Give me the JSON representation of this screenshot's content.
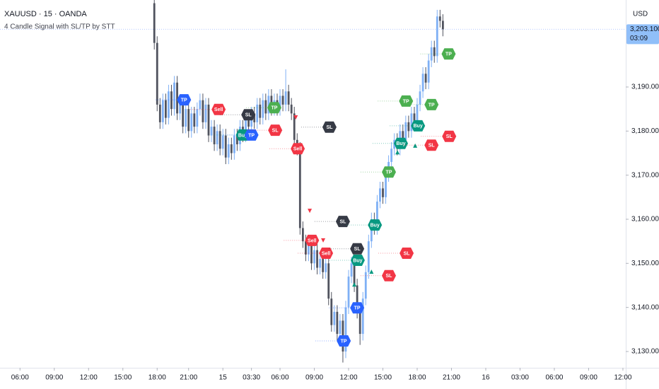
{
  "chart_data": {
    "type": "candlestick",
    "title": "XAUUSD · 15 · OANDA",
    "subtitle": "4 Candle Signal with SL/TP by STT",
    "y_axis_label": "USD",
    "x": [
      47,
      48,
      49,
      50,
      51,
      52,
      53,
      54,
      55,
      56,
      57,
      58,
      59,
      60,
      61,
      62,
      63,
      64,
      65,
      66,
      67,
      68,
      69,
      70,
      71,
      72,
      73,
      74,
      75,
      76,
      77,
      78,
      79,
      80,
      81,
      82,
      83,
      84,
      85,
      86,
      87,
      88,
      89,
      90,
      91,
      92,
      93,
      94,
      95,
      96,
      97,
      98,
      99,
      100,
      101,
      102,
      103,
      104,
      105,
      106,
      107,
      108,
      109,
      110,
      111,
      112,
      113,
      114,
      115,
      116,
      117,
      118,
      119,
      120,
      121,
      122,
      123,
      124,
      125,
      126,
      127,
      128,
      129,
      130,
      131,
      132,
      133,
      134,
      135,
      136,
      137,
      138,
      139,
      140,
      141,
      142,
      143,
      144,
      145,
      146,
      147,
      148
    ],
    "open": [
      3209,
      3200,
      3186,
      3182,
      3187,
      3183,
      3189,
      3185,
      3191,
      3184,
      3186,
      3181,
      3185,
      3180,
      3184,
      3181,
      3185,
      3187,
      3182,
      3186,
      3179,
      3181,
      3177,
      3180,
      3176,
      3179,
      3174,
      3177,
      3175,
      3179,
      3177,
      3181,
      3179,
      3183,
      3181,
      3184,
      3182,
      3186,
      3183,
      3187,
      3184,
      3188,
      3185,
      3187,
      3185,
      3188,
      3186,
      3189,
      3186,
      3184,
      3178,
      3176,
      3158,
      3155,
      3152,
      3154,
      3150,
      3153,
      3149,
      3151,
      3148,
      3150,
      3142,
      3136,
      3139,
      3134,
      3137,
      3130,
      3140,
      3147,
      3150,
      3145,
      3139,
      3134,
      3142,
      3148,
      3155,
      3160,
      3158,
      3164,
      3167,
      3165,
      3170,
      3173,
      3176,
      3178,
      3176,
      3180,
      3178,
      3182,
      3180,
      3184,
      3182,
      3186,
      3189,
      3193,
      3191,
      3196,
      3199,
      3197,
      3206,
      3205
    ],
    "high": [
      3212,
      3201.5,
      3187.5,
      3188.5,
      3188.5,
      3190.5,
      3190.5,
      3192.5,
      3192.5,
      3187.5,
      3187.5,
      3186.5,
      3186.5,
      3185.5,
      3185.5,
      3186.5,
      3188.5,
      3188.5,
      3187.5,
      3187.5,
      3182.5,
      3182.5,
      3181.5,
      3181.5,
      3180.5,
      3180.5,
      3178.5,
      3178.5,
      3180.5,
      3180.5,
      3182.5,
      3182.5,
      3184.5,
      3184.5,
      3185.5,
      3185.5,
      3187.5,
      3187.5,
      3188.5,
      3188.5,
      3189.5,
      3189.5,
      3188.5,
      3188.5,
      3189.5,
      3189.5,
      3194,
      3190.5,
      3187.5,
      3185.5,
      3179.5,
      3177.5,
      3159.5,
      3156.5,
      3155.5,
      3155.5,
      3154.5,
      3154.5,
      3152.5,
      3152.5,
      3151.5,
      3151.5,
      3143.5,
      3140.5,
      3140.5,
      3138.5,
      3138.5,
      3141.5,
      3148.5,
      3151.5,
      3151.5,
      3146.5,
      3140.5,
      3143.5,
      3149.5,
      3156.5,
      3161.5,
      3161.5,
      3165.5,
      3168.5,
      3168.5,
      3171.5,
      3174.5,
      3177.5,
      3179.5,
      3179.5,
      3181.5,
      3181.5,
      3183.5,
      3183.5,
      3185.5,
      3185.5,
      3187.5,
      3190.5,
      3194.5,
      3194.5,
      3197.5,
      3200.5,
      3200.5,
      3207.5,
      3207.5,
      3206.5
    ],
    "low": [
      3198.5,
      3184.5,
      3180.5,
      3180.5,
      3181.5,
      3181.5,
      3183.5,
      3183.5,
      3182.5,
      3182.5,
      3179.5,
      3179.5,
      3178.5,
      3178.5,
      3179.5,
      3179.5,
      3183.5,
      3180.5,
      3180.5,
      3177.5,
      3177.5,
      3175.5,
      3175.5,
      3174.5,
      3174.5,
      3172.5,
      3172.5,
      3173.5,
      3173.5,
      3175.5,
      3175.5,
      3177.5,
      3177.5,
      3179.5,
      3179.5,
      3180.5,
      3180.5,
      3181.5,
      3181.5,
      3182.5,
      3182.5,
      3183.5,
      3183.5,
      3183.5,
      3183.5,
      3184.5,
      3184.5,
      3184.5,
      3182.5,
      3176.5,
      3174.5,
      3156.5,
      3153.5,
      3150.5,
      3150.5,
      3148.5,
      3148.5,
      3147.5,
      3147.5,
      3146.5,
      3146.5,
      3140.5,
      3134.5,
      3134.5,
      3132.5,
      3132.5,
      3127.5,
      3128.5,
      3138.5,
      3145.5,
      3143.5,
      3137.5,
      3131.5,
      3132.5,
      3140.5,
      3146.5,
      3153.5,
      3156.5,
      3156.5,
      3162.5,
      3163.5,
      3163.5,
      3168.5,
      3171.5,
      3174.5,
      3174.5,
      3174.5,
      3176.5,
      3176.5,
      3178.5,
      3178.5,
      3180.5,
      3180.5,
      3184.5,
      3187.5,
      3189.5,
      3189.5,
      3194.5,
      3195.5,
      3195.5,
      3203.5,
      3201.5
    ],
    "close": [
      3200,
      3186,
      3182,
      3187,
      3183,
      3189,
      3185,
      3191,
      3184,
      3186,
      3181,
      3185,
      3180,
      3184,
      3181,
      3185,
      3187,
      3182,
      3186,
      3179,
      3181,
      3177,
      3180,
      3176,
      3179,
      3174,
      3177,
      3175,
      3179,
      3177,
      3181,
      3179,
      3183,
      3181,
      3184,
      3182,
      3186,
      3183,
      3187,
      3184,
      3188,
      3185,
      3187,
      3185,
      3188,
      3186,
      3189,
      3186,
      3184,
      3178,
      3176,
      3158,
      3155,
      3152,
      3154,
      3150,
      3153,
      3149,
      3151,
      3148,
      3150,
      3142,
      3136,
      3139,
      3134,
      3137,
      3130,
      3140,
      3147,
      3150,
      3145,
      3139,
      3134,
      3142,
      3148,
      3155,
      3160,
      3158,
      3164,
      3167,
      3165,
      3170,
      3173,
      3176,
      3178,
      3176,
      3180,
      3178,
      3182,
      3180,
      3184,
      3182,
      3186,
      3189,
      3193,
      3191,
      3196,
      3199,
      3197,
      3206,
      3205,
      3203.1
    ],
    "up_color": "#7fb0f5",
    "down_color": "#50535e",
    "xlim": [
      -7,
      212
    ],
    "xticks": [
      {
        "value": 0,
        "label": "06:00"
      },
      {
        "value": 12,
        "label": "09:00"
      },
      {
        "value": 24,
        "label": "12:00"
      },
      {
        "value": 36,
        "label": "15:00"
      },
      {
        "value": 48,
        "label": "18:00"
      },
      {
        "value": 59,
        "label": "21:00"
      },
      {
        "value": 71,
        "label": "15"
      },
      {
        "value": 81,
        "label": "03:30"
      },
      {
        "value": 91,
        "label": "06:00"
      },
      {
        "value": 103,
        "label": "09:00"
      },
      {
        "value": 115,
        "label": "12:00"
      },
      {
        "value": 127,
        "label": "15:00"
      },
      {
        "value": 139,
        "label": "18:00"
      },
      {
        "value": 151,
        "label": "21:00"
      },
      {
        "value": 163,
        "label": "16"
      },
      {
        "value": 175,
        "label": "03:00"
      },
      {
        "value": 187,
        "label": "06:00"
      },
      {
        "value": 199,
        "label": "09:00"
      },
      {
        "value": 211,
        "label": "12:00"
      }
    ],
    "ylim": [
      3126.31,
      3209.73
    ],
    "yticks": [
      {
        "value": 3130,
        "label": "3,130.000"
      },
      {
        "value": 3140,
        "label": "3,140.000"
      },
      {
        "value": 3150,
        "label": "3,150.000"
      },
      {
        "value": 3160,
        "label": "3,160.000"
      },
      {
        "value": 3170,
        "label": "3,170.000"
      },
      {
        "value": 3180,
        "label": "3,180.000"
      },
      {
        "value": 3190,
        "label": "3,190.000"
      }
    ],
    "grid": false,
    "last_price": {
      "value": 3203.1,
      "label": "3,203.100",
      "color": "#90bff9"
    },
    "countdown": "03:09",
    "signals": [
      {
        "text": "TP",
        "x": 57.4,
        "y": 3187.1,
        "color": "#2962ff"
      },
      {
        "text": "Sell",
        "x": 69.5,
        "y": 3184.9,
        "color": "#f23645"
      },
      {
        "text": "SL",
        "x": 79.9,
        "y": 3183.7,
        "color": "#363a45"
      },
      {
        "text": "TP",
        "x": 89,
        "y": 3185.3,
        "color": "#4caf50"
      },
      {
        "text": "Buy",
        "x": 78,
        "y": 3179.1,
        "color": "#089981"
      },
      {
        "text": "TP",
        "x": 81,
        "y": 3179.1,
        "color": "#2962ff"
      },
      {
        "text": "SL",
        "x": 89.3,
        "y": 3180.2,
        "color": "#f23645"
      },
      {
        "text": "SL",
        "x": 108.3,
        "y": 3180.9,
        "color": "#363a45"
      },
      {
        "text": "Sell",
        "x": 97.2,
        "y": 3176,
        "color": "#f23645"
      },
      {
        "text": "SL",
        "x": 113,
        "y": 3159.5,
        "color": "#363a45"
      },
      {
        "text": "Sell",
        "x": 102.2,
        "y": 3155.2,
        "color": "#f23645"
      },
      {
        "text": "Sell",
        "x": 107.1,
        "y": 3152.3,
        "color": "#f23645"
      },
      {
        "text": "SL",
        "x": 118,
        "y": 3153.3,
        "color": "#363a45"
      },
      {
        "text": "Buy",
        "x": 118.2,
        "y": 3150.7,
        "color": "#089981"
      },
      {
        "text": "TP",
        "x": 118,
        "y": 3139.9,
        "color": "#2962ff"
      },
      {
        "text": "TP",
        "x": 113.3,
        "y": 3132.4,
        "color": "#2962ff"
      },
      {
        "text": "Buy",
        "x": 124.2,
        "y": 3158.7,
        "color": "#089981"
      },
      {
        "text": "SL",
        "x": 135.3,
        "y": 3152.3,
        "color": "#f23645"
      },
      {
        "text": "SL",
        "x": 129.1,
        "y": 3147.2,
        "color": "#f23645"
      },
      {
        "text": "TP",
        "x": 129.1,
        "y": 3170.7,
        "color": "#4caf50"
      },
      {
        "text": "TP",
        "x": 135.1,
        "y": 3186.8,
        "color": "#4caf50"
      },
      {
        "text": "TP",
        "x": 144,
        "y": 3186,
        "color": "#4caf50"
      },
      {
        "text": "Buy",
        "x": 139.3,
        "y": 3181.2,
        "color": "#089981"
      },
      {
        "text": "Buy",
        "x": 133.3,
        "y": 3177.2,
        "color": "#089981"
      },
      {
        "text": "SL",
        "x": 144,
        "y": 3176.8,
        "color": "#f23645"
      },
      {
        "text": "SL",
        "x": 150.2,
        "y": 3178.8,
        "color": "#f23645"
      },
      {
        "text": "TP",
        "x": 150,
        "y": 3197.5,
        "color": "#4caf50"
      }
    ],
    "markers": [
      {
        "shape": "down",
        "x": 96.5,
        "y": 3183.1,
        "color": "#f23645"
      },
      {
        "shape": "down",
        "x": 101.4,
        "y": 3161.9,
        "color": "#f23645"
      },
      {
        "shape": "down",
        "x": 106.1,
        "y": 3155.2,
        "color": "#f23645"
      },
      {
        "shape": "up",
        "x": 117,
        "y": 3145.2,
        "color": "#089981"
      },
      {
        "shape": "up",
        "x": 123,
        "y": 3148.1,
        "color": "#089981"
      },
      {
        "shape": "up",
        "x": 132.1,
        "y": 3175.2,
        "color": "#089981"
      },
      {
        "shape": "up",
        "x": 138.3,
        "y": 3176.7,
        "color": "#089981"
      }
    ]
  }
}
